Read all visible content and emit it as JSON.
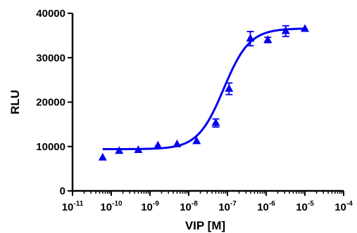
{
  "chart_data": {
    "type": "scatter",
    "xlabel": "VIP [M]",
    "ylabel": "RLU",
    "x_scale": "log",
    "xlim": [
      1e-11,
      0.0001
    ],
    "ylim": [
      0,
      40000
    ],
    "x_ticks": [
      {
        "base": "10",
        "exp": "-11",
        "value": 1e-11
      },
      {
        "base": "10",
        "exp": "-10",
        "value": 1e-10
      },
      {
        "base": "10",
        "exp": "-9",
        "value": 1e-09
      },
      {
        "base": "10",
        "exp": "-8",
        "value": 1e-08
      },
      {
        "base": "10",
        "exp": "-7",
        "value": 1e-07
      },
      {
        "base": "10",
        "exp": "-6",
        "value": 1e-06
      },
      {
        "base": "10",
        "exp": "-5",
        "value": 1e-05
      },
      {
        "base": "10",
        "exp": "-4",
        "value": 0.0001
      }
    ],
    "y_ticks": [
      {
        "label": "0",
        "value": 0
      },
      {
        "label": "10000",
        "value": 10000
      },
      {
        "label": "20000",
        "value": 20000
      },
      {
        "label": "30000",
        "value": 30000
      },
      {
        "label": "40000",
        "value": 40000
      }
    ],
    "series": [
      {
        "color": "#0000ee",
        "marker": "triangle",
        "points": [
          {
            "x": 6e-11,
            "y": 7500,
            "err": 0
          },
          {
            "x": 1.6e-10,
            "y": 9000,
            "err": 0
          },
          {
            "x": 5e-10,
            "y": 9200,
            "err": 0
          },
          {
            "x": 1.6e-09,
            "y": 10200,
            "err": 0
          },
          {
            "x": 5e-09,
            "y": 10500,
            "err": 0
          },
          {
            "x": 1.6e-08,
            "y": 11200,
            "err": 0
          },
          {
            "x": 5e-08,
            "y": 15300,
            "err": 900
          },
          {
            "x": 1.1e-07,
            "y": 23000,
            "err": 1300
          },
          {
            "x": 3.9e-07,
            "y": 34300,
            "err": 1600
          },
          {
            "x": 1.1e-06,
            "y": 34000,
            "err": 600
          },
          {
            "x": 3.2e-06,
            "y": 36000,
            "err": 1200
          },
          {
            "x": 1e-05,
            "y": 36500,
            "err": 0
          }
        ]
      }
    ],
    "fit": {
      "model": "sigmoidal dose-response",
      "bottom": 9400,
      "top": 36600,
      "ec50": 8e-08,
      "hill": 1.3
    },
    "grid": false,
    "legend": "none"
  }
}
